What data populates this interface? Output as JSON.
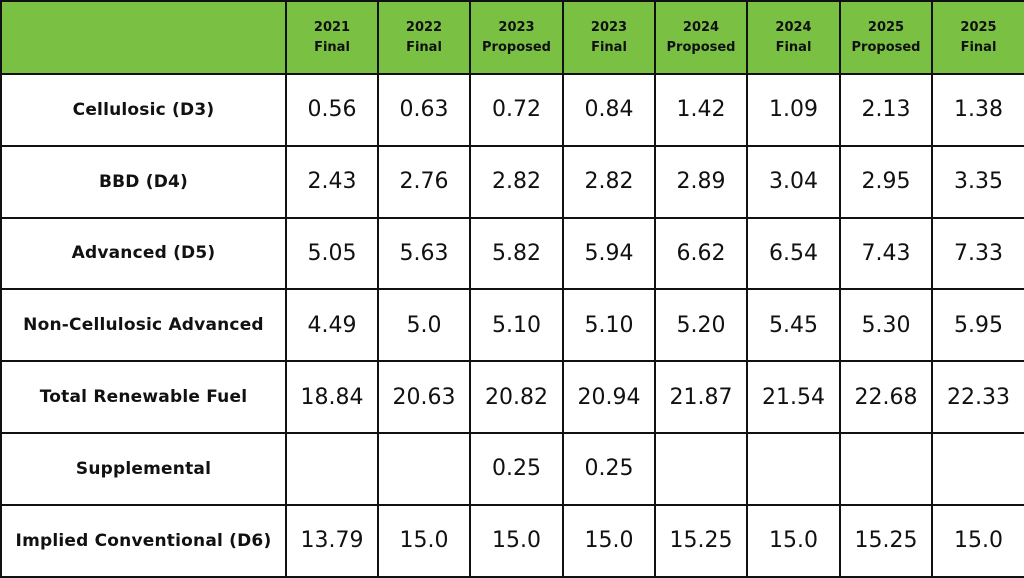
{
  "chart_data": {
    "type": "table",
    "corner": "",
    "columns": [
      {
        "year": "2021",
        "status": "Final"
      },
      {
        "year": "2022",
        "status": "Final"
      },
      {
        "year": "2023",
        "status": "Proposed"
      },
      {
        "year": "2023",
        "status": "Final"
      },
      {
        "year": "2024",
        "status": "Proposed"
      },
      {
        "year": "2024",
        "status": "Final"
      },
      {
        "year": "2025",
        "status": "Proposed"
      },
      {
        "year": "2025",
        "status": "Final"
      }
    ],
    "rows": [
      {
        "label": "Cellulosic (D3)",
        "values": [
          "0.56",
          "0.63",
          "0.72",
          "0.84",
          "1.42",
          "1.09",
          "2.13",
          "1.38"
        ]
      },
      {
        "label": "BBD (D4)",
        "values": [
          "2.43",
          "2.76",
          "2.82",
          "2.82",
          "2.89",
          "3.04",
          "2.95",
          "3.35"
        ]
      },
      {
        "label": "Advanced (D5)",
        "values": [
          "5.05",
          "5.63",
          "5.82",
          "5.94",
          "6.62",
          "6.54",
          "7.43",
          "7.33"
        ]
      },
      {
        "label": "Non-Cellulosic Advanced",
        "values": [
          "4.49",
          "5.0",
          "5.10",
          "5.10",
          "5.20",
          "5.45",
          "5.30",
          "5.95"
        ]
      },
      {
        "label": "Total Renewable Fuel",
        "values": [
          "18.84",
          "20.63",
          "20.82",
          "20.94",
          "21.87",
          "21.54",
          "22.68",
          "22.33"
        ]
      },
      {
        "label": "Supplemental",
        "values": [
          "",
          "",
          "0.25",
          "0.25",
          "",
          "",
          "",
          ""
        ]
      },
      {
        "label": "Implied Conventional (D6)",
        "values": [
          "13.79",
          "15.0",
          "15.0",
          "15.0",
          "15.25",
          "15.0",
          "15.25",
          "15.0"
        ]
      }
    ]
  },
  "colors": {
    "header_background": "#7ac143",
    "border": "#111111",
    "text": "#111111",
    "cell_background": "#ffffff"
  }
}
